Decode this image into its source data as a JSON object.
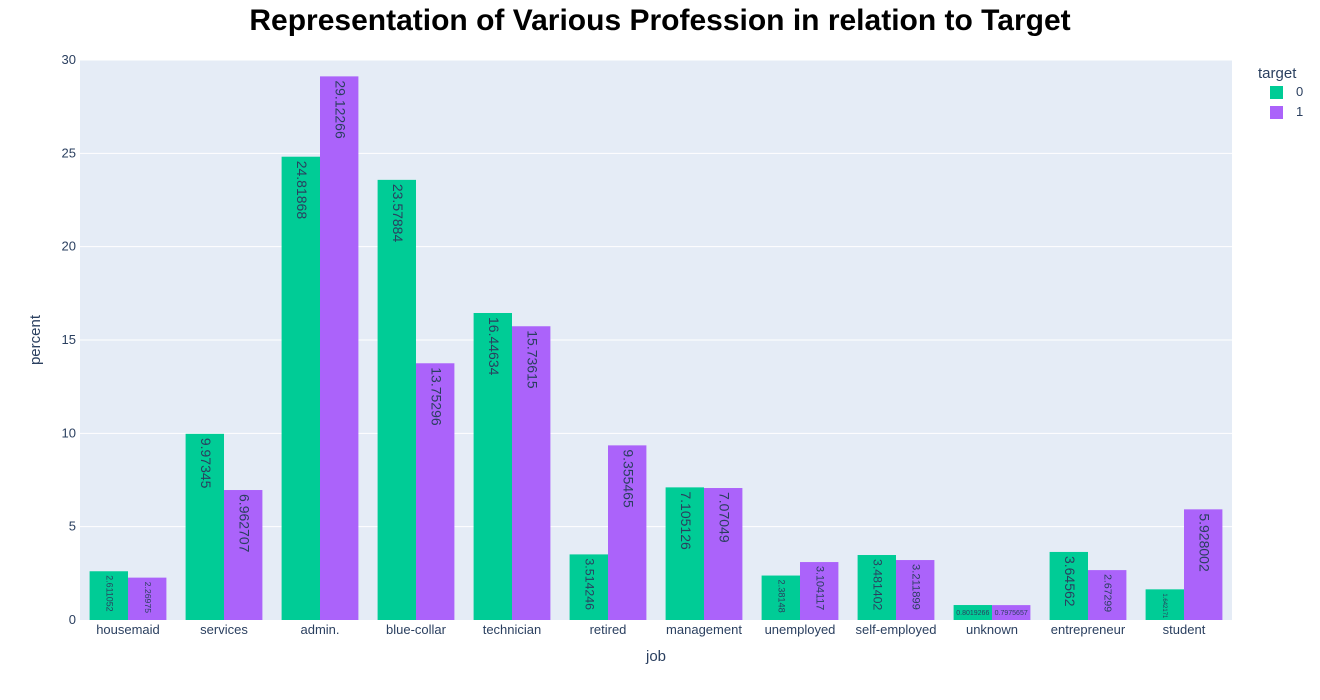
{
  "chart_data": {
    "type": "bar",
    "title": "Representation of Various Profession in relation to Target",
    "xlabel": "job",
    "ylabel": "percent",
    "ylim": [
      0,
      30
    ],
    "yticks": [
      0,
      5,
      10,
      15,
      20,
      25,
      30
    ],
    "grid": true,
    "legend": {
      "title": "target",
      "placement": "top-right"
    },
    "categories": [
      "housemaid",
      "services",
      "admin.",
      "blue-collar",
      "technician",
      "retired",
      "management",
      "unemployed",
      "self-employed",
      "unknown",
      "entrepreneur",
      "student"
    ],
    "series": [
      {
        "name": "0",
        "color": "#00cc96",
        "values": [
          2.611052,
          9.97345,
          24.81868,
          23.57884,
          16.44634,
          3.514246,
          7.105126,
          2.38148,
          3.481402,
          0.8019266,
          3.64562,
          1.642171
        ],
        "labels": [
          "2.611052",
          "9.97345",
          "24.81868",
          "23.57884",
          "16.44634",
          "3.514246",
          "7.105126",
          "2.38148",
          "3.481402",
          "0.8019266",
          "3.64562",
          "1.642171"
        ]
      },
      {
        "name": "1",
        "color": "#ab63fa",
        "values": [
          2.26975,
          6.962707,
          29.12266,
          13.75296,
          15.73615,
          9.355465,
          7.07049,
          3.104117,
          3.211899,
          0.7975657,
          2.67299,
          5.928002
        ],
        "labels": [
          "2.26975",
          "6.962707",
          "29.12266",
          "13.75296",
          "15.73615",
          "9.355465",
          "7.07049",
          "3.104117",
          "3.211899",
          "0.7975657",
          "2.67299",
          "5.928002"
        ]
      }
    ]
  }
}
